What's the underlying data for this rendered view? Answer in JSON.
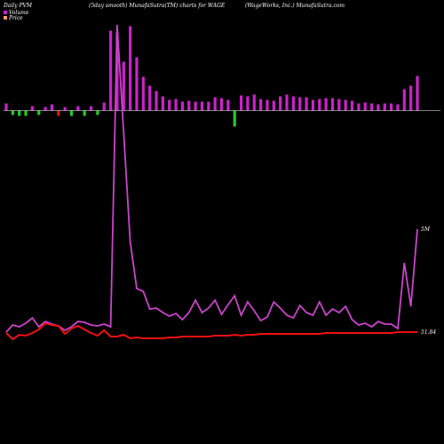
{
  "header": {
    "left": "Daily PVM",
    "center": "(5day smooth) MunafaSutra(TM) charts for WAGE",
    "right": "(WageWorks, Inc.) MunafaSutra.com"
  },
  "legend": {
    "volume_label": "Volume",
    "price_label": "Price"
  },
  "colors": {
    "background": "#000000",
    "volume_up": "#cc22cc",
    "volume_down": "#22cc22",
    "volume_neg_red": "#ee1111",
    "volume_line": "#cc44cc",
    "price_line": "#ee1111",
    "baseline": "#ffffff"
  },
  "chart_data": {
    "type": "bar+line",
    "series": [
      {
        "name": "Volume",
        "values": [
          8,
          5,
          6,
          6,
          5,
          5,
          4,
          7,
          6,
          4,
          6,
          5,
          6,
          5,
          5,
          9,
          90,
          88,
          55,
          95,
          60,
          38,
          28,
          22,
          16,
          12,
          13,
          10,
          11,
          10,
          10,
          10,
          15,
          14,
          12,
          18,
          17,
          16,
          18,
          13,
          12,
          11,
          16,
          18,
          16,
          15,
          15,
          12,
          13,
          14,
          14,
          13,
          12,
          11,
          8,
          9,
          8,
          7,
          8,
          8,
          7,
          24,
          28,
          39
        ],
        "signs": [
          "up",
          "down",
          "down",
          "down",
          "up",
          "down",
          "up",
          "up",
          "down",
          "up",
          "down",
          "up",
          "down",
          "up",
          "down",
          "up",
          "up",
          "up",
          "up",
          "up",
          "up",
          "up",
          "up",
          "up",
          "up",
          "up",
          "up",
          "up",
          "up",
          "up",
          "up",
          "up",
          "up",
          "up",
          "up",
          "down",
          "up",
          "up",
          "up",
          "up",
          "up",
          "up",
          "up",
          "up",
          "up",
          "up",
          "up",
          "up",
          "up",
          "up",
          "up",
          "up",
          "up",
          "up",
          "up",
          "up",
          "up",
          "up",
          "up",
          "up",
          "up",
          "up",
          "up",
          "up"
        ]
      },
      {
        "name": "Volume (5day smooth)",
        "values": [
          374,
          366,
          368,
          364,
          358,
          368,
          362,
          365,
          367,
          372,
          368,
          362,
          363,
          366,
          367,
          365,
          368,
          28,
          150,
          272,
          325,
          328,
          348,
          347,
          352,
          356,
          353,
          360,
          352,
          338,
          352,
          347,
          338,
          354,
          343,
          333,
          355,
          340,
          350,
          361,
          357,
          340,
          347,
          355,
          358,
          344,
          352,
          355,
          340,
          355,
          348,
          352,
          345,
          360,
          366,
          364,
          368,
          362,
          365,
          365,
          370,
          296,
          345,
          258
        ]
      },
      {
        "name": "Price",
        "values": [
          375,
          382,
          377,
          378,
          375,
          371,
          364,
          366,
          367,
          376,
          370,
          367,
          371,
          375,
          378,
          372,
          379,
          379,
          377,
          381,
          380,
          381,
          381,
          381,
          381,
          380,
          380,
          379,
          379,
          379,
          379,
          379,
          378,
          378,
          378,
          377,
          378,
          377,
          377,
          376,
          376,
          376,
          376,
          376,
          376,
          376,
          376,
          376,
          376,
          375,
          375,
          375,
          375,
          375,
          375,
          375,
          375,
          375,
          375,
          375,
          374,
          374,
          374,
          374
        ]
      }
    ],
    "annotations": {
      "volume_last_label": "5M",
      "price_last_label": "51.84"
    }
  }
}
